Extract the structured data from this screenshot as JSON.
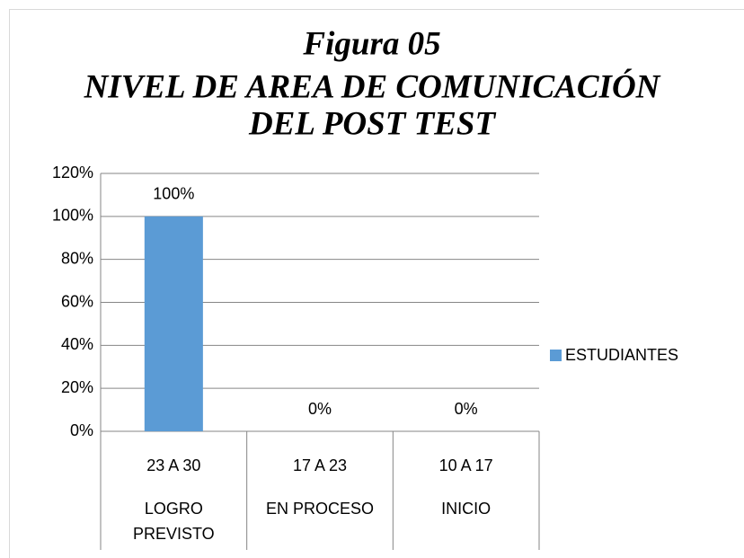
{
  "chart_data": {
    "type": "bar",
    "title": [
      "Figura 05",
      "NIVEL DE AREA DE COMUNICACIÓN",
      "DEL POST TEST"
    ],
    "categories": [
      [
        "23 A 30",
        "LOGRO PREVISTO"
      ],
      [
        "17 A 23",
        "EN PROCESO"
      ],
      [
        "10 A 17",
        "INICIO"
      ]
    ],
    "series": [
      {
        "name": "ESTUDIANTES",
        "color": "#5b9bd5",
        "values": [
          100,
          0,
          0
        ],
        "value_labels": [
          "100%",
          "0%",
          "0%"
        ]
      }
    ],
    "ylim": [
      0,
      120
    ],
    "yticks": [
      {
        "value": 0,
        "label": "0%"
      },
      {
        "value": 20,
        "label": "20%"
      },
      {
        "value": 40,
        "label": "40%"
      },
      {
        "value": 60,
        "label": "60%"
      },
      {
        "value": 80,
        "label": "80%"
      },
      {
        "value": 100,
        "label": "100%"
      },
      {
        "value": 120,
        "label": "120%"
      }
    ],
    "grid": true,
    "legend": "right"
  }
}
